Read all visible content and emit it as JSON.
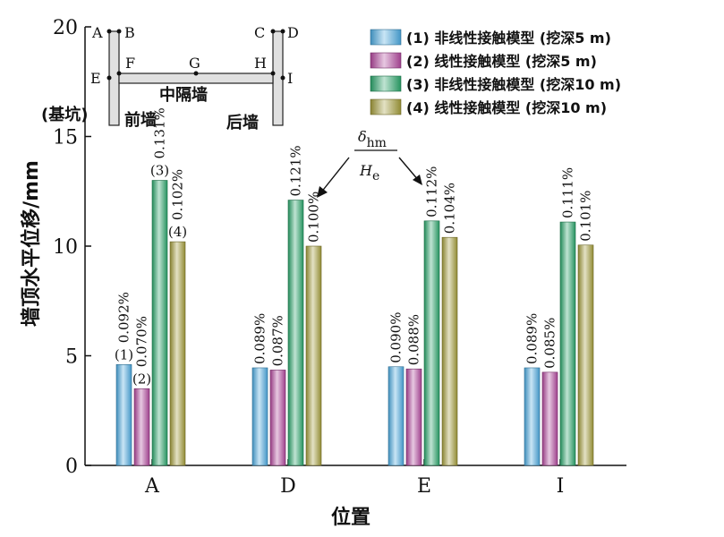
{
  "chart_data": {
    "type": "bar",
    "categories": [
      "A",
      "D",
      "E",
      "I"
    ],
    "series": [
      {
        "name": "(1) 非线性接触模型 (挖深5 m)",
        "label": "(1)",
        "values": [
          4.6,
          4.45,
          4.5,
          4.45
        ],
        "pct": [
          "0.092%",
          "0.089%",
          "0.090%",
          "0.089%"
        ],
        "color": "#4aa7dc"
      },
      {
        "name": "(2) 线性接触模型 (挖深5 m)",
        "label": "(2)",
        "values": [
          3.5,
          4.35,
          4.4,
          4.25
        ],
        "pct": [
          "0.070%",
          "0.087%",
          "0.088%",
          "0.085%"
        ],
        "color": "#b0479b"
      },
      {
        "name": "(3) 非线性接触模型 (挖深10 m)",
        "label": "(3)",
        "values": [
          13.0,
          12.1,
          11.15,
          11.1
        ],
        "pct": [
          "0.131%",
          "0.121%",
          "0.112%",
          "0.111%"
        ],
        "color": "#2aa36a"
      },
      {
        "name": "(4) 线性接触模型 (挖深10 m)",
        "label": "(4)",
        "values": [
          10.2,
          10.0,
          10.4,
          10.05
        ],
        "pct": [
          "0.102%",
          "0.100%",
          "0.104%",
          "0.101%"
        ],
        "color": "#a19a3a"
      }
    ],
    "xlabel": "位置",
    "ylabel": "墙顶水平位移/mm",
    "ylim": [
      0,
      20
    ],
    "yticks": [
      0,
      5,
      10,
      15,
      20
    ],
    "legend": "top-right",
    "grid": false,
    "annotation": {
      "numerator": "δ",
      "num_sub": "hm",
      "denominator": "H",
      "den_sub": "e"
    }
  },
  "diagram": {
    "points": [
      "A",
      "B",
      "C",
      "D",
      "E",
      "F",
      "G",
      "H",
      "I"
    ],
    "labels": {
      "pit": "(基坑)",
      "front_wall": "前墙",
      "middle_wall": "中隔墙",
      "back_wall": "后墙"
    }
  }
}
